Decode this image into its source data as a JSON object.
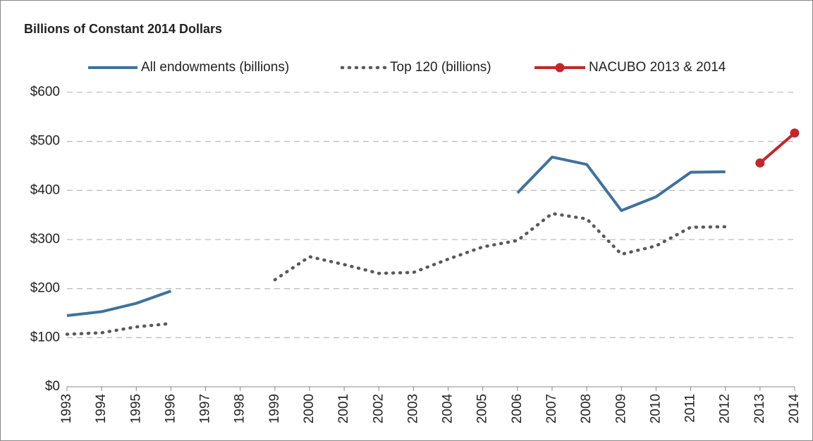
{
  "chart_data": {
    "type": "line",
    "title": "Billions of Constant 2014 Dollars",
    "categories": [
      "1993",
      "1994",
      "1995",
      "1996",
      "1997",
      "1998",
      "1999",
      "2000",
      "2001",
      "2002",
      "2003",
      "2004",
      "2005",
      "2006",
      "2007",
      "2008",
      "2009",
      "2010",
      "2011",
      "2012",
      "2013",
      "2014"
    ],
    "series": [
      {
        "name": "All endowments (billions)",
        "color": "#41719c",
        "style": "solid",
        "values": [
          145,
          153,
          170,
          195,
          null,
          null,
          null,
          null,
          null,
          null,
          null,
          null,
          null,
          395,
          468,
          453,
          359,
          387,
          437,
          438,
          null,
          null
        ]
      },
      {
        "name": "Top 120 (billions)",
        "color": "#595959",
        "style": "dotted",
        "values": [
          107,
          110,
          122,
          129,
          null,
          null,
          218,
          265,
          249,
          231,
          233,
          260,
          285,
          298,
          353,
          342,
          270,
          287,
          325,
          326,
          null,
          null
        ]
      },
      {
        "name": "NACUBO 2013 & 2014",
        "color": "#c0282d",
        "style": "solid",
        "marker": "circle",
        "values": [
          null,
          null,
          null,
          null,
          null,
          null,
          null,
          null,
          null,
          null,
          null,
          null,
          null,
          null,
          null,
          null,
          null,
          null,
          null,
          null,
          456,
          517
        ]
      }
    ],
    "ylim": [
      0,
      600
    ],
    "yticks": [
      {
        "value": 0,
        "label": "$0"
      },
      {
        "value": 100,
        "label": "$100"
      },
      {
        "value": 200,
        "label": "$200"
      },
      {
        "value": 300,
        "label": "$300"
      },
      {
        "value": 400,
        "label": "$400"
      },
      {
        "value": 500,
        "label": "$500"
      },
      {
        "value": 600,
        "label": "$600"
      }
    ],
    "grid": true
  }
}
